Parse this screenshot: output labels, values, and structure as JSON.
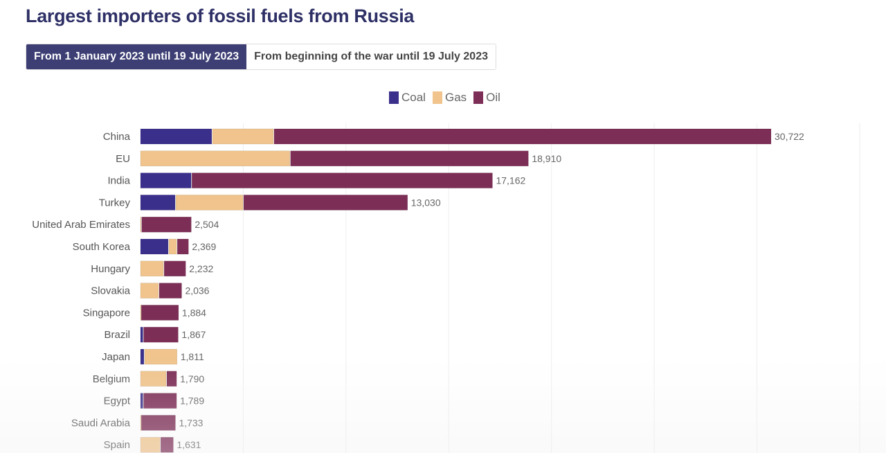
{
  "colors": {
    "coal": "#3b2f8c",
    "gas": "#f0c48c",
    "oil": "#7d2e56",
    "accent": "#3d3f74"
  },
  "toggle": {
    "active_label": "From 1 January 2023 until 19 July 2023",
    "inactive_label": "From beginning of the war until 19 July 2023"
  },
  "chart_data": {
    "type": "bar",
    "orientation": "horizontal",
    "stacked": true,
    "title": "Largest importers of fossil fuels from Russia",
    "legend": {
      "position": "top-center",
      "entries": [
        "Coal",
        "Gas",
        "Oil"
      ]
    },
    "xlim": [
      0,
      35000
    ],
    "grid_step": 5000,
    "categories": [
      "China",
      "EU",
      "India",
      "Turkey",
      "United Arab Emirates",
      "South Korea",
      "Hungary",
      "Slovakia",
      "Singapore",
      "Brazil",
      "Japan",
      "Belgium",
      "Egypt",
      "Saudi Arabia",
      "Spain"
    ],
    "totals": [
      "30,722",
      "18,910",
      "17,162",
      "13,030",
      "2,504",
      "2,369",
      "2,232",
      "2,036",
      "1,884",
      "1,867",
      "1,811",
      "1,790",
      "1,789",
      "1,733",
      "1,631"
    ],
    "series": [
      {
        "name": "Coal",
        "values": [
          3500,
          0,
          2500,
          1720,
          0,
          1380,
          0,
          0,
          0,
          150,
          200,
          0,
          150,
          0,
          0
        ]
      },
      {
        "name": "Gas",
        "values": [
          3000,
          7300,
          0,
          3300,
          60,
          410,
          1150,
          910,
          40,
          0,
          1611,
          1280,
          0,
          40,
          980
        ]
      },
      {
        "name": "Oil",
        "values": [
          24222,
          11610,
          14662,
          8010,
          2444,
          579,
          1082,
          1126,
          1844,
          1717,
          0,
          510,
          1639,
          1693,
          651
        ]
      }
    ]
  }
}
